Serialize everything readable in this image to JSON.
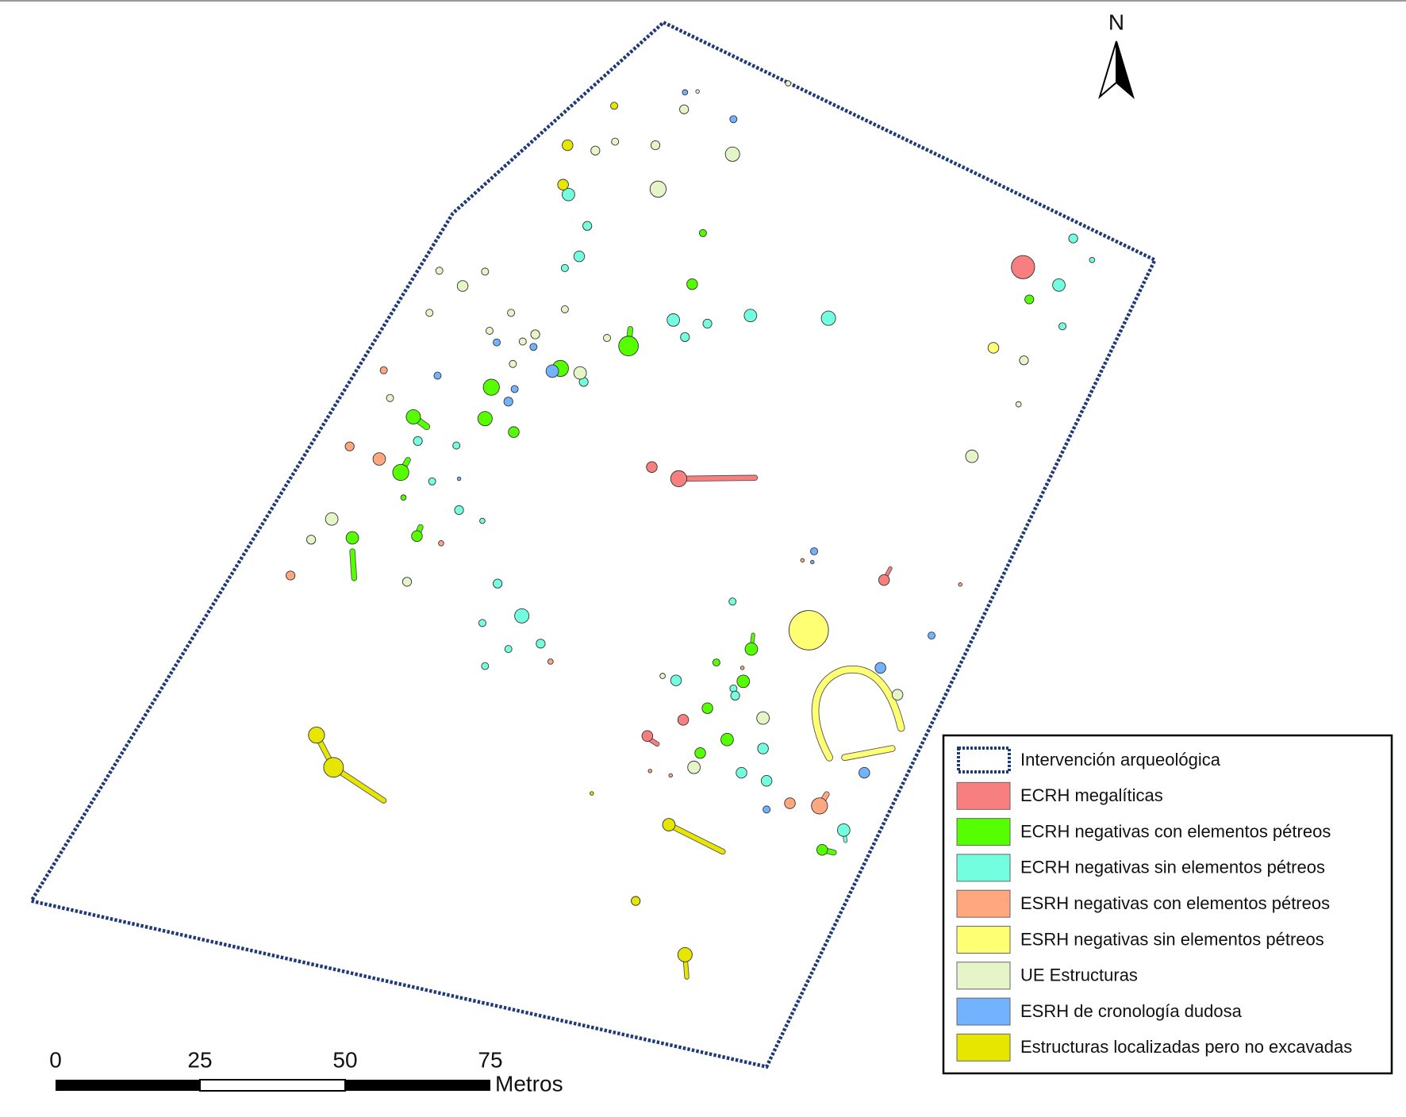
{
  "north": "N",
  "scale_bar": {
    "ticks": [
      "0",
      "25",
      "50",
      "75"
    ],
    "unit": "Metros"
  },
  "legend": [
    {
      "label": "Intervención arqueológica",
      "color": "#1f3a78"
    },
    {
      "label": "ECRH megalíticas",
      "color": "#f77f7f"
    },
    {
      "label": "ECRH negativas con elementos pétreos",
      "color": "#55ff00"
    },
    {
      "label": "ECRH negativas sin elementos pétreos",
      "color": "#73ffdf"
    },
    {
      "label": "ESRH negativas con elementos pétreos",
      "color": "#ffa77f"
    },
    {
      "label": "ESRH negativas sin elementos pétreos",
      "color": "#ffff73"
    },
    {
      "label": "UE Estructuras",
      "color": "#e5f5c8"
    },
    {
      "label": "ESRH de cronología dudosa",
      "color": "#73b2ff"
    },
    {
      "label": "Estructuras localizadas pero no excavadas",
      "color": "#e6e600"
    }
  ]
}
